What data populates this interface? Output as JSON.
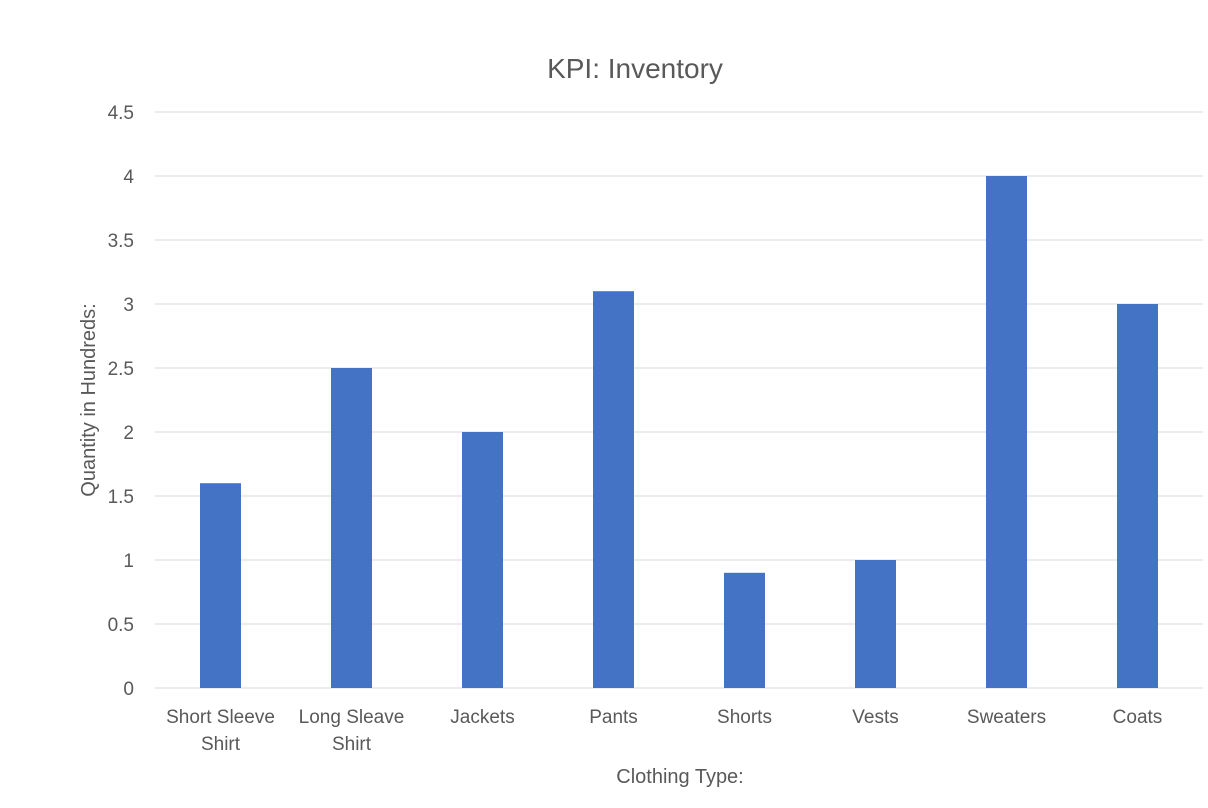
{
  "chart_data": {
    "type": "bar",
    "title": "KPI: Inventory",
    "xlabel": "Clothing Type:",
    "ylabel": "Quantity in Hundreds:",
    "categories": [
      [
        "Short Sleeve",
        "Shirt"
      ],
      [
        "Long Sleave",
        "Shirt"
      ],
      [
        "Jackets"
      ],
      [
        "Pants"
      ],
      [
        "Shorts"
      ],
      [
        "Vests"
      ],
      [
        "Sweaters"
      ],
      [
        "Coats"
      ]
    ],
    "values": [
      1.6,
      2.5,
      2.0,
      3.1,
      0.9,
      1.0,
      4.0,
      3.0
    ],
    "ylim": [
      0,
      4.5
    ],
    "yticks": [
      "0",
      "0.5",
      "1",
      "1.5",
      "2",
      "2.5",
      "3",
      "3.5",
      "4",
      "4.5"
    ],
    "ytick_values": [
      0,
      0.5,
      1,
      1.5,
      2,
      2.5,
      3,
      3.5,
      4,
      4.5
    ],
    "grid": true,
    "legend": "none",
    "bar_color": "#4472c4"
  }
}
